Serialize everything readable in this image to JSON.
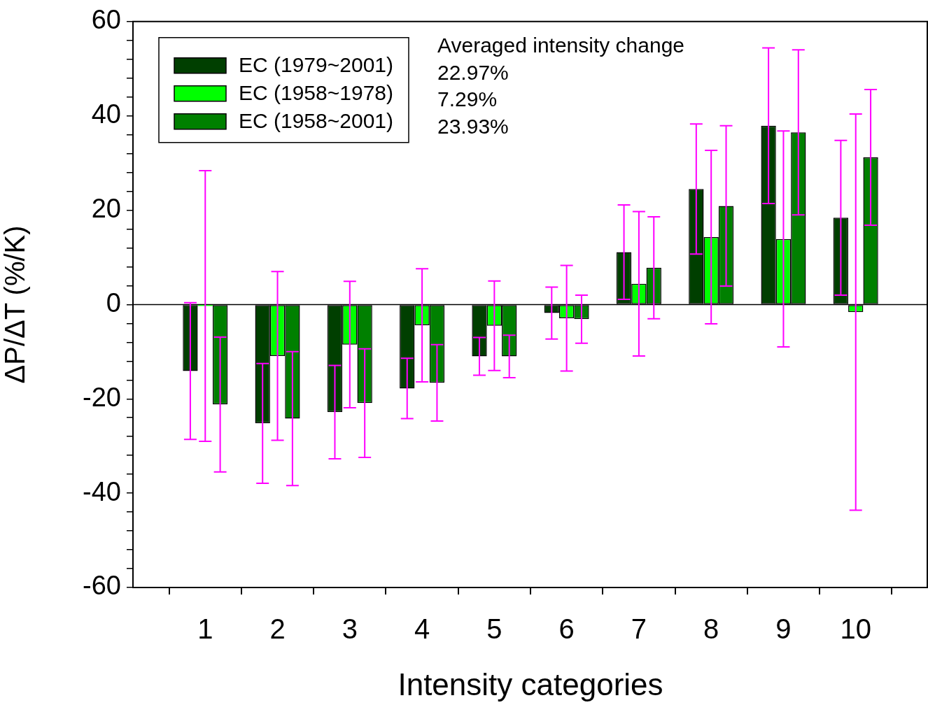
{
  "chart_data": {
    "type": "bar",
    "xlabel": "Intensity categories",
    "ylabel": "ΔP/ΔT (%/K)",
    "categories": [
      "1",
      "2",
      "3",
      "4",
      "5",
      "6",
      "7",
      "8",
      "9",
      "10"
    ],
    "series": [
      {
        "name": "EC (1979~2001)",
        "color": "#003f00",
        "values": [
          -14.1,
          -25.2,
          -22.8,
          -17.8,
          -11.0,
          -1.8,
          11.1,
          24.5,
          37.9,
          18.4
        ],
        "errors": [
          14.5,
          12.7,
          9.9,
          6.4,
          4.0,
          5.5,
          10.0,
          13.8,
          16.5,
          16.4
        ]
      },
      {
        "name": "EC (1958~1978)",
        "color": "#00ff00",
        "values": [
          -0.3,
          -10.9,
          -8.5,
          -4.4,
          -4.5,
          -2.9,
          4.4,
          14.3,
          13.9,
          -1.6
        ],
        "errors": [
          28.7,
          17.9,
          13.4,
          12.0,
          9.5,
          11.2,
          15.3,
          18.4,
          22.9,
          42.0
        ]
      },
      {
        "name": "EC (1958~2001)",
        "color": "#008000",
        "values": [
          -21.2,
          -24.2,
          -20.9,
          -16.6,
          -11.0,
          -3.1,
          7.8,
          20.9,
          36.5,
          31.2
        ],
        "errors": [
          14.3,
          14.2,
          11.5,
          8.1,
          4.5,
          5.1,
          10.8,
          17.0,
          17.5,
          14.4
        ]
      }
    ],
    "ylim": [
      -60,
      60
    ],
    "yticks": [
      -60,
      {
        "value": -56,
        "label": null
      },
      {
        "value": -52,
        "label": null
      },
      {
        "value": -48,
        "label": null
      },
      {
        "value": -44,
        "label": null
      },
      -40,
      {
        "value": -36,
        "label": null
      },
      {
        "value": -32,
        "label": null
      },
      {
        "value": -28,
        "label": null
      },
      {
        "value": -24,
        "label": null
      },
      -20,
      {
        "value": -16,
        "label": null
      },
      {
        "value": -12,
        "label": null
      },
      {
        "value": -8,
        "label": null
      },
      {
        "value": -4,
        "label": null
      },
      0,
      {
        "value": 4,
        "label": null
      },
      {
        "value": 8,
        "label": null
      },
      {
        "value": 12,
        "label": null
      },
      {
        "value": 16,
        "label": null
      },
      20,
      {
        "value": 24,
        "label": null
      },
      {
        "value": 28,
        "label": null
      },
      {
        "value": 32,
        "label": null
      },
      {
        "value": 36,
        "label": null
      },
      40,
      {
        "value": 44,
        "label": null
      },
      {
        "value": 48,
        "label": null
      },
      {
        "value": 52,
        "label": null
      },
      {
        "value": 56,
        "label": null
      },
      60
    ],
    "annotations": [
      "Averaged intensity change",
      "22.97%",
      "7.29%",
      "23.93%"
    ],
    "legend": "top left",
    "grid": false
  }
}
